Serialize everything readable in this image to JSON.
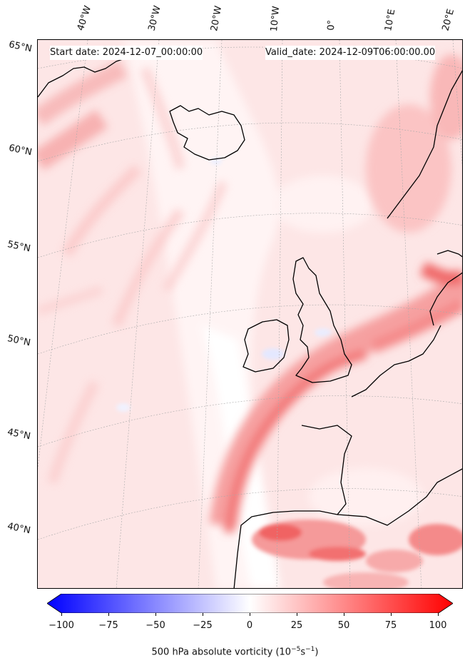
{
  "header": {
    "start_date": "Start date: 2024-12-07_00:00:00",
    "valid_date": "Valid_date: 2024-12-09T06:00:00.00"
  },
  "map": {
    "longitude_labels": [
      "40°W",
      "30°W",
      "20°W",
      "10°W",
      "0°",
      "10°E",
      "20°E"
    ],
    "latitude_labels": [
      "65°N",
      "60°N",
      "55°N",
      "50°N",
      "45°N",
      "40°N"
    ],
    "field": "500 hPa absolute vorticity",
    "colors": {
      "positive": "#ff0000",
      "negative": "#0000ff",
      "neutral": "#ffffff",
      "coast": "#000000"
    }
  },
  "colorbar": {
    "ticks": [
      "−100",
      "−75",
      "−50",
      "−25",
      "0",
      "25",
      "50",
      "75",
      "100"
    ],
    "range": [
      -100,
      100
    ],
    "label_main": "500 hPa absolute vorticity (10",
    "label_exp1": "−5",
    "label_mid": "s",
    "label_exp2": "−1",
    "label_end": ")"
  }
}
